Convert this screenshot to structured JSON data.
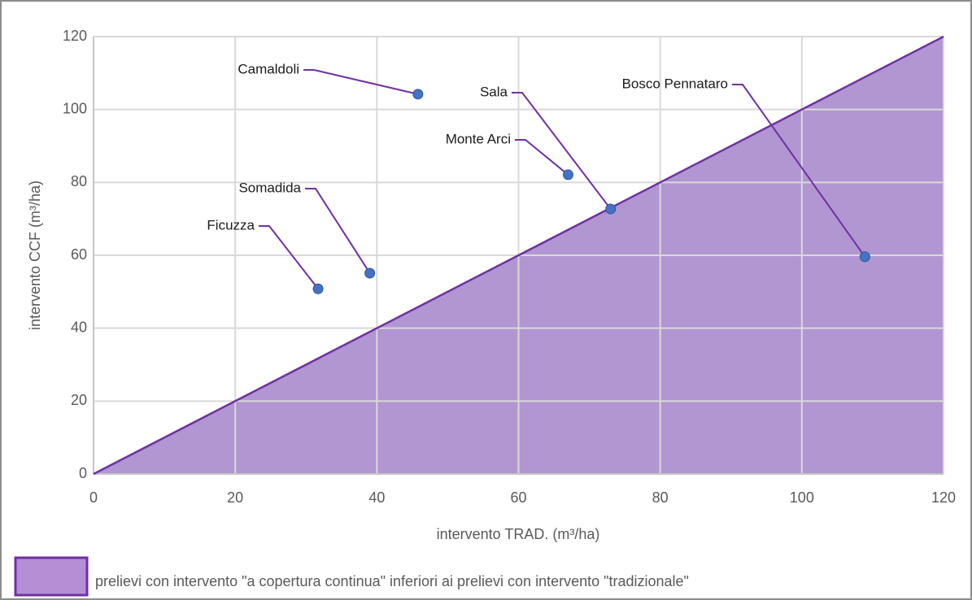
{
  "chart_data": {
    "type": "scatter",
    "x_label": "intervento TRAD. (m³/ha)",
    "y_label": "intervento CCF  (m³/ha)",
    "xlim": [
      0,
      120
    ],
    "ylim": [
      0,
      120
    ],
    "xticks": [
      0,
      20,
      40,
      60,
      80,
      100,
      120
    ],
    "yticks": [
      0,
      20,
      40,
      60,
      80,
      100,
      120
    ],
    "grid": true,
    "series": [
      {
        "color": "#4472c4",
        "labels": [
          "Ficuzza",
          "Somadida",
          "Camaldoli",
          "Monte Arci",
          "Sala",
          "Bosco Pennataro"
        ],
        "x": [
          31.7,
          39.0,
          45.8,
          67.0,
          73.0,
          108.9
        ],
        "values": [
          50.8,
          55.1,
          104.2,
          82.1,
          72.7,
          59.6
        ]
      }
    ],
    "reference_line": {
      "x": [
        0,
        120
      ],
      "y": [
        0,
        120
      ],
      "color": "#b196d2",
      "line_color": "#7030a0"
    },
    "legend": {
      "label": "prelievi con intervento \"a copertura continua\" inferiori ai prelievi con intervento \"tradizionale\"",
      "color": "#b48fd6"
    }
  }
}
